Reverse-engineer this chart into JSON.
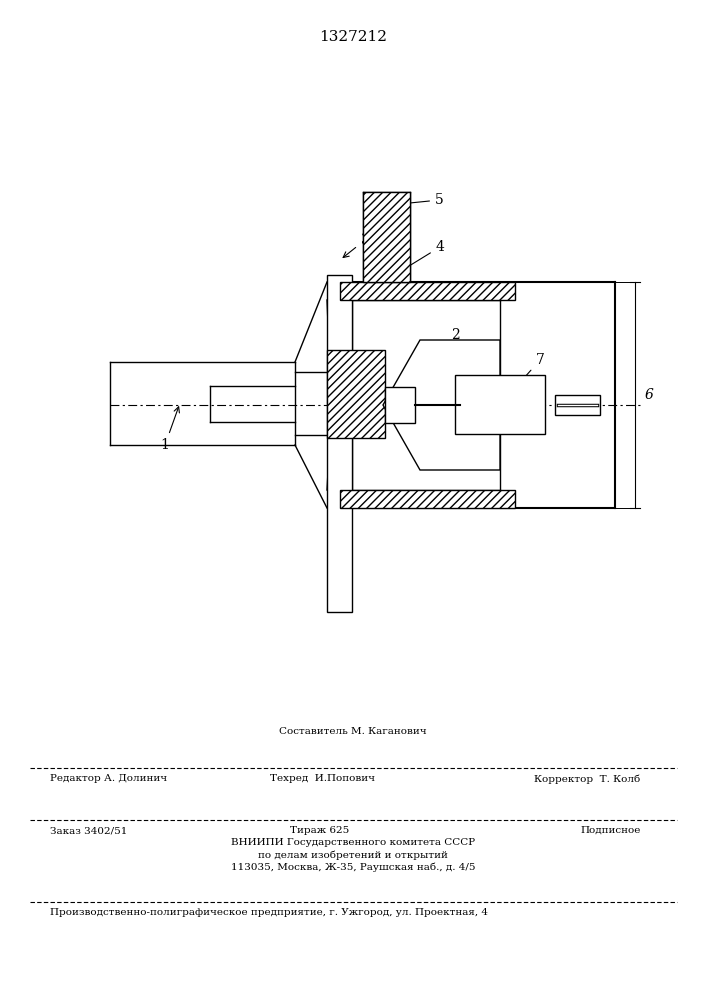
{
  "title": "1327212",
  "bg_color": "#ffffff",
  "line_color": "#000000",
  "footer_above": "Составитель М. Каганович",
  "footer_left1": "Редактор А. Долинич",
  "footer_mid1": "Техред  И.Попович",
  "footer_right1": "Корректор  Т. Колб",
  "footer_left2": "Заказ 3402/51",
  "footer_mid2": "Тираж 625",
  "footer_right2": "Подписное",
  "footer_line3": "ВНИИПИ Государственного комитета СССР",
  "footer_line4": "по делам изобретений и открытий",
  "footer_line5": "113035, Москва, Ж-35, Раушская наб., д. 4/5",
  "footer_line6": "Производственно-полиграфическое предприятие, г. Ужгород, ул. Проектная, 4"
}
